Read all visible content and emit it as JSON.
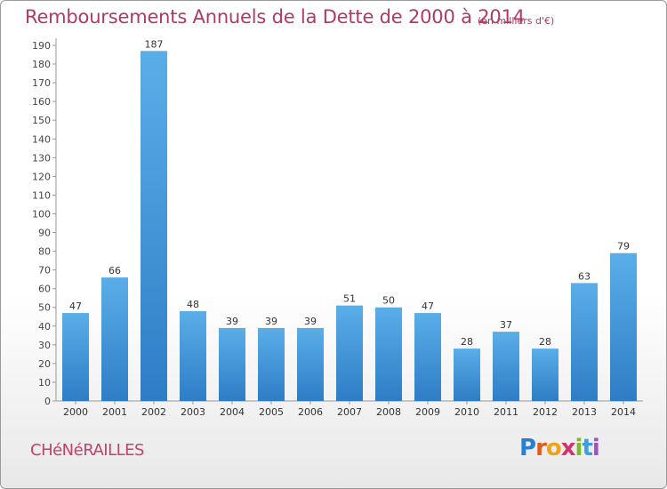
{
  "title": "Remboursements Annuels de la Dette de 2000 à 2014",
  "subtitle": "(en milliers d'€)",
  "commune": "CHéNéRAILLES",
  "logo": {
    "letters": [
      "P",
      "r",
      "o",
      "x",
      "i",
      "t",
      "i"
    ],
    "colors": [
      "#2a7fd4",
      "#e25a1c",
      "#f0a31a",
      "#d0356e",
      "#7ab928",
      "#3aa0e0",
      "#9b59b6"
    ]
  },
  "chart_data": {
    "type": "bar",
    "categories": [
      "2000",
      "2001",
      "2002",
      "2003",
      "2004",
      "2005",
      "2006",
      "2007",
      "2008",
      "2009",
      "2010",
      "2011",
      "2012",
      "2013",
      "2014"
    ],
    "values": [
      47,
      66,
      187,
      48,
      39,
      39,
      39,
      51,
      50,
      47,
      28,
      37,
      28,
      63,
      79
    ],
    "ylim": [
      0,
      190
    ],
    "yticks": [
      0,
      10,
      20,
      30,
      40,
      50,
      60,
      70,
      80,
      90,
      100,
      110,
      120,
      130,
      140,
      150,
      160,
      170,
      180,
      190
    ],
    "grid": false,
    "bar_color": "#3a8fd8",
    "axis_color": "#999999"
  }
}
